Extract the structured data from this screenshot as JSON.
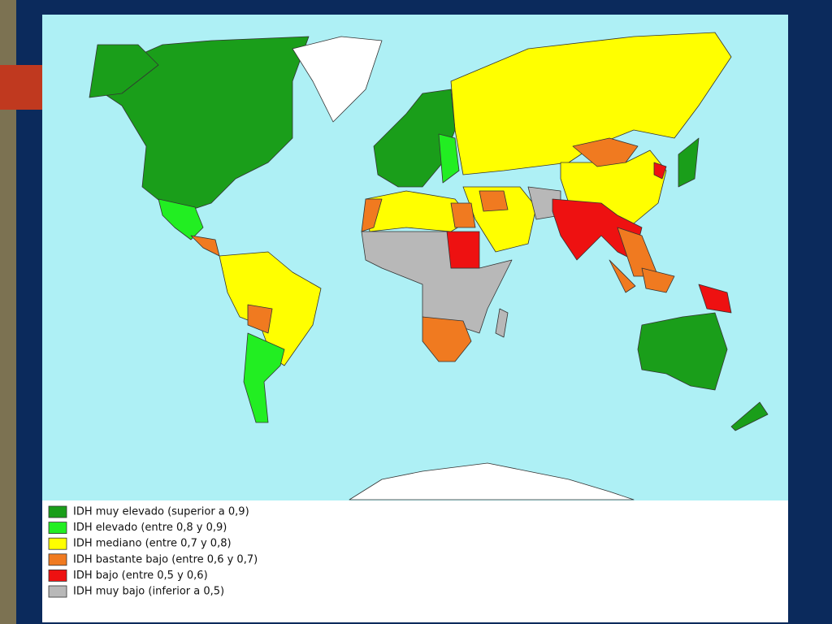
{
  "legend": {
    "items": [
      {
        "label": "IDH muy elevado (superior a 0,9)",
        "color": "#1a9e1a"
      },
      {
        "label": "IDH elevado (entre 0,8 y 0,9)",
        "color": "#22ee22"
      },
      {
        "label": "IDH mediano (entre 0,7 y 0,8)",
        "color": "#ffff00"
      },
      {
        "label": "IDH bastante bajo (entre 0,6 y 0,7)",
        "color": "#f07a20"
      },
      {
        "label": "IDH bajo (entre 0,5 y 0,6)",
        "color": "#ee1111"
      },
      {
        "label": "IDH muy bajo (inferior a 0,5)",
        "color": "#b8b8b8"
      }
    ]
  }
}
